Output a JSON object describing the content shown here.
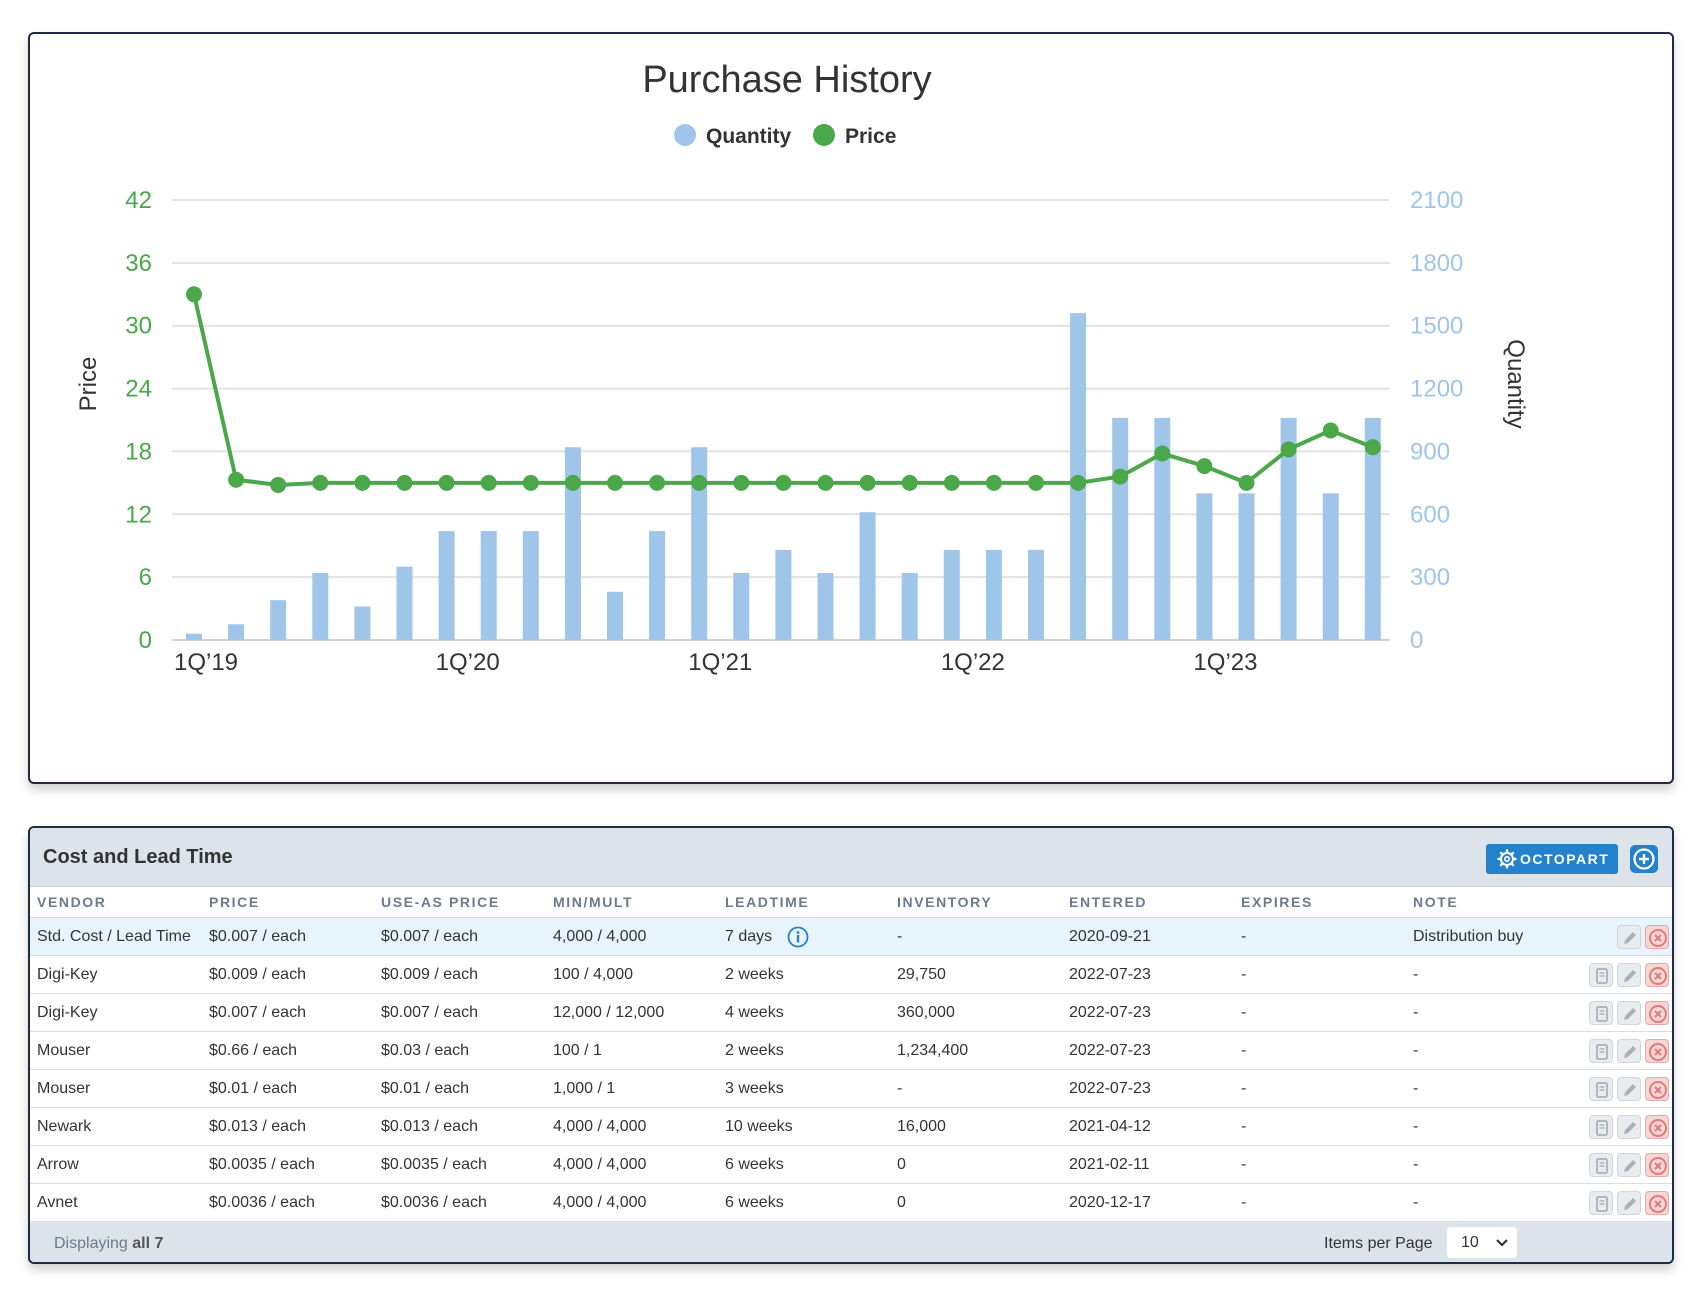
{
  "chart_data": {
    "type": "bar",
    "title": "Purchase History",
    "legend": [
      {
        "name": "Quantity",
        "color": "#9fc5e8"
      },
      {
        "name": "Price",
        "color": "#4aa84a"
      }
    ],
    "legend_position": "top-center",
    "y_left": {
      "label": "Price",
      "ticks": [
        "0",
        "6",
        "12",
        "18",
        "24",
        "30",
        "36",
        "42"
      ],
      "range": [
        0,
        42
      ],
      "color": "#4aa84a"
    },
    "y_right": {
      "label": "Quantity",
      "ticks": [
        "0",
        "300",
        "600",
        "900",
        "1200",
        "1500",
        "1800",
        "2100"
      ],
      "range": [
        0,
        2100
      ],
      "color": "#9fc5e8"
    },
    "x_tick_labels": [
      {
        "label": "1Q’19",
        "index": 0
      },
      {
        "label": "1Q’20",
        "index": 6.5
      },
      {
        "label": "1Q’21",
        "index": 12.5
      },
      {
        "label": "1Q’22",
        "index": 18.5
      },
      {
        "label": "1Q’23",
        "index": 24.5
      }
    ],
    "grid": true,
    "series": [
      {
        "name": "Quantity",
        "type": "bar",
        "values": [
          30,
          75,
          190,
          320,
          160,
          350,
          520,
          520,
          520,
          920,
          230,
          520,
          920,
          320,
          430,
          320,
          610,
          320,
          430,
          430,
          430,
          1560,
          1060,
          1060,
          700,
          700,
          1060,
          700,
          1060
        ]
      },
      {
        "name": "Price",
        "type": "line",
        "values": [
          33,
          15.3,
          14.8,
          15,
          15,
          15,
          15,
          15,
          15,
          15,
          15,
          15,
          15,
          15,
          15,
          15,
          15,
          15,
          15,
          15,
          15,
          15,
          15.6,
          17.8,
          16.6,
          15,
          18.2,
          20,
          18.4
        ]
      }
    ]
  },
  "table": {
    "title": "Cost and Lead Time",
    "octopart_label": "OCTOPART",
    "add_icon": "plus-circle-icon",
    "columns": [
      "VENDOR",
      "PRICE",
      "USE-AS PRICE",
      "MIN/MULT",
      "LEADTIME",
      "INVENTORY",
      "ENTERED",
      "EXPIRES",
      "NOTE"
    ],
    "rows": [
      {
        "vendor": "Std. Cost / Lead Time",
        "price": "$0.007 / each",
        "use_as": "$0.007 / each",
        "minmult": "4,000 / 4,000",
        "leadtime": "7 days",
        "inventory": "-",
        "entered": "2020-09-21",
        "expires": "-",
        "note": "Distribution buy"
      },
      {
        "vendor": "Digi-Key",
        "price": "$0.009 / each",
        "use_as": "$0.009 / each",
        "minmult": "100 / 4,000",
        "leadtime": "2 weeks",
        "inventory": "29,750",
        "entered": "2022-07-23",
        "expires": "-",
        "note": "-"
      },
      {
        "vendor": "Digi-Key",
        "price": "$0.007 / each",
        "use_as": "$0.007 / each",
        "minmult": "12,000 / 12,000",
        "leadtime": "4 weeks",
        "inventory": "360,000",
        "entered": "2022-07-23",
        "expires": "-",
        "note": "-"
      },
      {
        "vendor": "Mouser",
        "price": "$0.66 / each",
        "use_as": "$0.03 / each",
        "minmult": "100 / 1",
        "leadtime": "2 weeks",
        "inventory": "1,234,400",
        "entered": "2022-07-23",
        "expires": "-",
        "note": "-"
      },
      {
        "vendor": "Mouser",
        "price": "$0.01 / each",
        "use_as": "$0.01 / each",
        "minmult": "1,000 / 1",
        "leadtime": "3 weeks",
        "inventory": "-",
        "entered": "2022-07-23",
        "expires": "-",
        "note": "-"
      },
      {
        "vendor": "Newark",
        "price": "$0.013 / each",
        "use_as": "$0.013 / each",
        "minmult": "4,000 / 4,000",
        "leadtime": "10 weeks",
        "inventory": "16,000",
        "entered": "2021-04-12",
        "expires": "-",
        "note": "-"
      },
      {
        "vendor": "Arrow",
        "price": "$0.0035 / each",
        "use_as": "$0.0035 / each",
        "minmult": "4,000 / 4,000",
        "leadtime": "6 weeks",
        "inventory": "0",
        "entered": "2021-02-11",
        "expires": "-",
        "note": "-"
      },
      {
        "vendor": "Avnet",
        "price": "$0.0036 / each",
        "use_as": "$0.0036 / each",
        "minmult": "4,000 / 4,000",
        "leadtime": "6 weeks",
        "inventory": "0",
        "entered": "2020-12-17",
        "expires": "-",
        "note": "-"
      }
    ],
    "footer": {
      "displaying_prefix": "Displaying",
      "displaying_count": "all 7",
      "items_per_page_label": "Items per Page",
      "items_per_page_value": "10"
    },
    "colors": {
      "accent": "#2481cc",
      "date_red": "#c0201f",
      "header_bg": "#dde3ea",
      "std_row_bg": "#e8f4fb"
    }
  }
}
